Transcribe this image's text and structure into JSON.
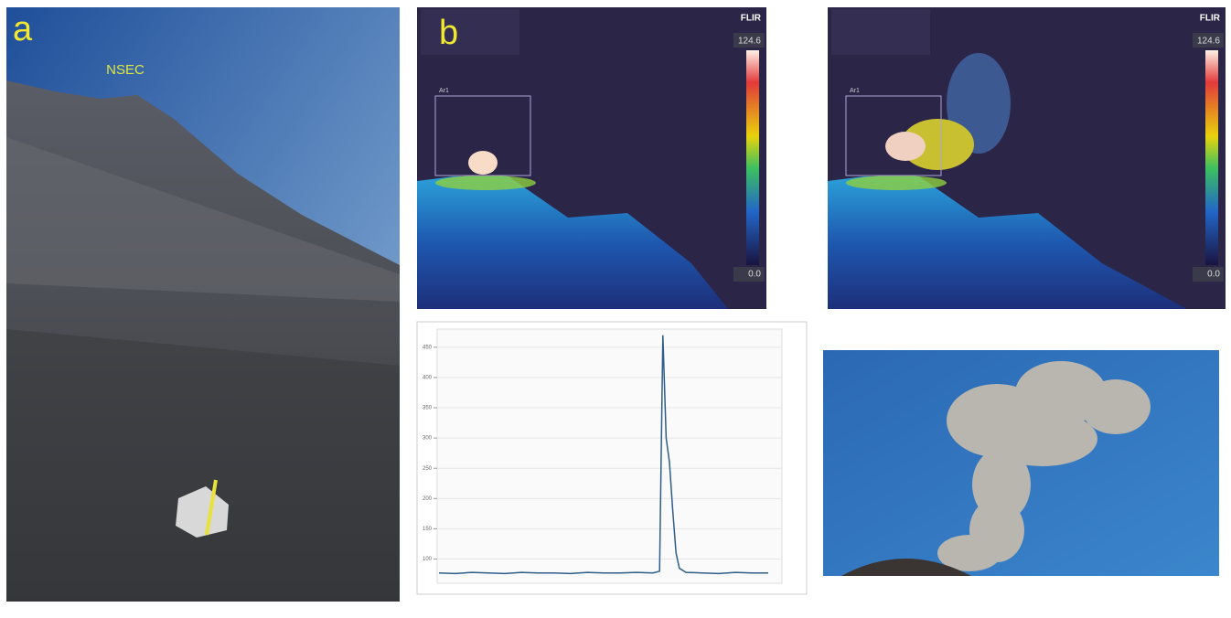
{
  "panel_a": {
    "label": "a",
    "annotation": "NSEC"
  },
  "panel_b": {
    "label": "b",
    "thermal_images": [
      {
        "logo": "FLIR",
        "scale_max": "124.6",
        "scale_min": "0.0",
        "roi": "Ar1"
      },
      {
        "logo": "FLIR",
        "scale_max": "124.6",
        "scale_min": "0.0",
        "roi": "Ar1"
      }
    ]
  },
  "plot": {
    "type": "line",
    "x": [
      0,
      5,
      10,
      15,
      20,
      25,
      30,
      35,
      40,
      45,
      50,
      55,
      60,
      65,
      67,
      68,
      69,
      70,
      71,
      72,
      73,
      75,
      80,
      85,
      90,
      95,
      100
    ],
    "values": [
      77,
      76,
      78,
      77,
      76,
      78,
      77,
      77,
      76,
      78,
      77,
      77,
      78,
      77,
      80,
      470,
      300,
      260,
      180,
      110,
      85,
      78,
      77,
      76,
      78,
      77,
      77
    ],
    "xlim": [
      0,
      100
    ],
    "ylim": [
      60,
      480
    ],
    "yticks": [
      100,
      150,
      200,
      250,
      300,
      350,
      400,
      450
    ],
    "color": "#2f5d8a",
    "grid": true
  }
}
